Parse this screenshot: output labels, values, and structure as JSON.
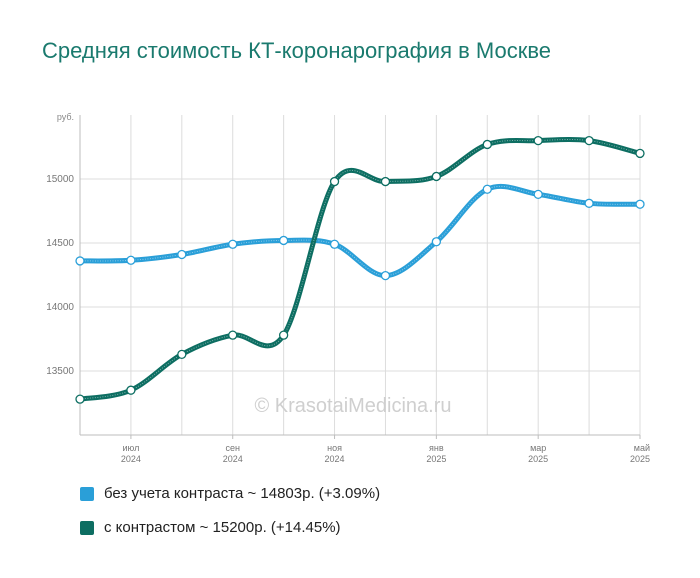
{
  "title": "Средняя стоимость КТ-коронарография в Москве",
  "watermark": "© KrasotaiMedicina.ru",
  "chart_data": {
    "type": "line",
    "y_unit_label": "руб.",
    "ylim": [
      13000,
      15500
    ],
    "yticks": [
      13500,
      14000,
      14500,
      15000
    ],
    "ytick_labels": [
      "13500",
      "14000",
      "14500",
      "15000"
    ],
    "x_count": 12,
    "x_labels": [
      {
        "index": 1,
        "month": "июл",
        "year": "2024"
      },
      {
        "index": 3,
        "month": "сен",
        "year": "2024"
      },
      {
        "index": 5,
        "month": "ноя",
        "year": "2024"
      },
      {
        "index": 7,
        "month": "янв",
        "year": "2025"
      },
      {
        "index": 9,
        "month": "мар",
        "year": "2025"
      },
      {
        "index": 11,
        "month": "май",
        "year": "2025"
      }
    ],
    "grid": true,
    "series": [
      {
        "name": "без учета контраста",
        "color": "#2a9fd8",
        "values": [
          14360,
          14365,
          14410,
          14490,
          14520,
          14490,
          14245,
          14510,
          14920,
          14880,
          14810,
          14803
        ]
      },
      {
        "name": "с контрастом",
        "color": "#0d6e62",
        "values": [
          13280,
          13350,
          13630,
          13780,
          13780,
          14980,
          14980,
          15020,
          15270,
          15300,
          15300,
          15200
        ]
      }
    ]
  },
  "legend": [
    {
      "label": "без учета контраста ~ 14803р. (+3.09%)",
      "color": "#2a9fd8"
    },
    {
      "label": "с контрастом ~ 15200р. (+14.45%)",
      "color": "#0d6e62"
    }
  ]
}
